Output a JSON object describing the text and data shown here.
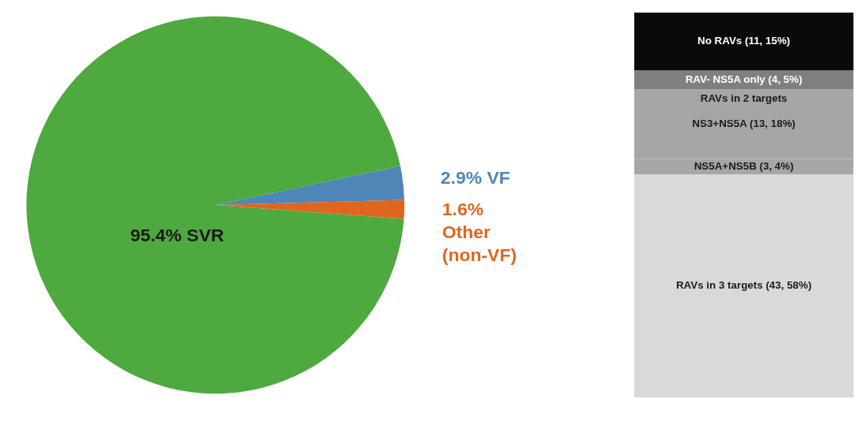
{
  "chart_data": [
    {
      "type": "pie",
      "categories": [
        null,
        null,
        null
      ],
      "values": [
        2.9,
        1.6,
        95.4
      ],
      "colors": [
        "#4f86b8",
        "#e0661f",
        "#4ea93e"
      ],
      "value_labels": [
        "2.9% VF",
        "1.6%\nOther\n(non-VF)",
        "95.4% SVR"
      ]
    },
    {
      "type": "bar",
      "stacked": true,
      "categories": [
        null
      ],
      "series": [
        {
          "color": "#d9d9d9",
          "values": [
            58
          ],
          "value_labels": [
            "RAVs in 3 targets (43, 58%)"
          ]
        },
        {
          "color": "#a6a6a6",
          "values": [
            4
          ],
          "value_labels": [
            "NS5A+NS5B (3, 4%)"
          ]
        },
        {
          "color": "#a6a6a6",
          "values": [
            18
          ],
          "value_labels": [
            "NS3+NS5A (13, 18%)"
          ]
        },
        {
          "color": "#7f7f7f",
          "values": [
            5
          ],
          "value_labels": [
            "RAV- NS5A only (4, 5%)"
          ]
        },
        {
          "color": "#0a0a0a",
          "values": [
            15
          ],
          "value_labels": [
            "No RAVs (11, 15%)"
          ]
        }
      ],
      "annotations": [
        "RAVs in 2 targets"
      ]
    }
  ]
}
